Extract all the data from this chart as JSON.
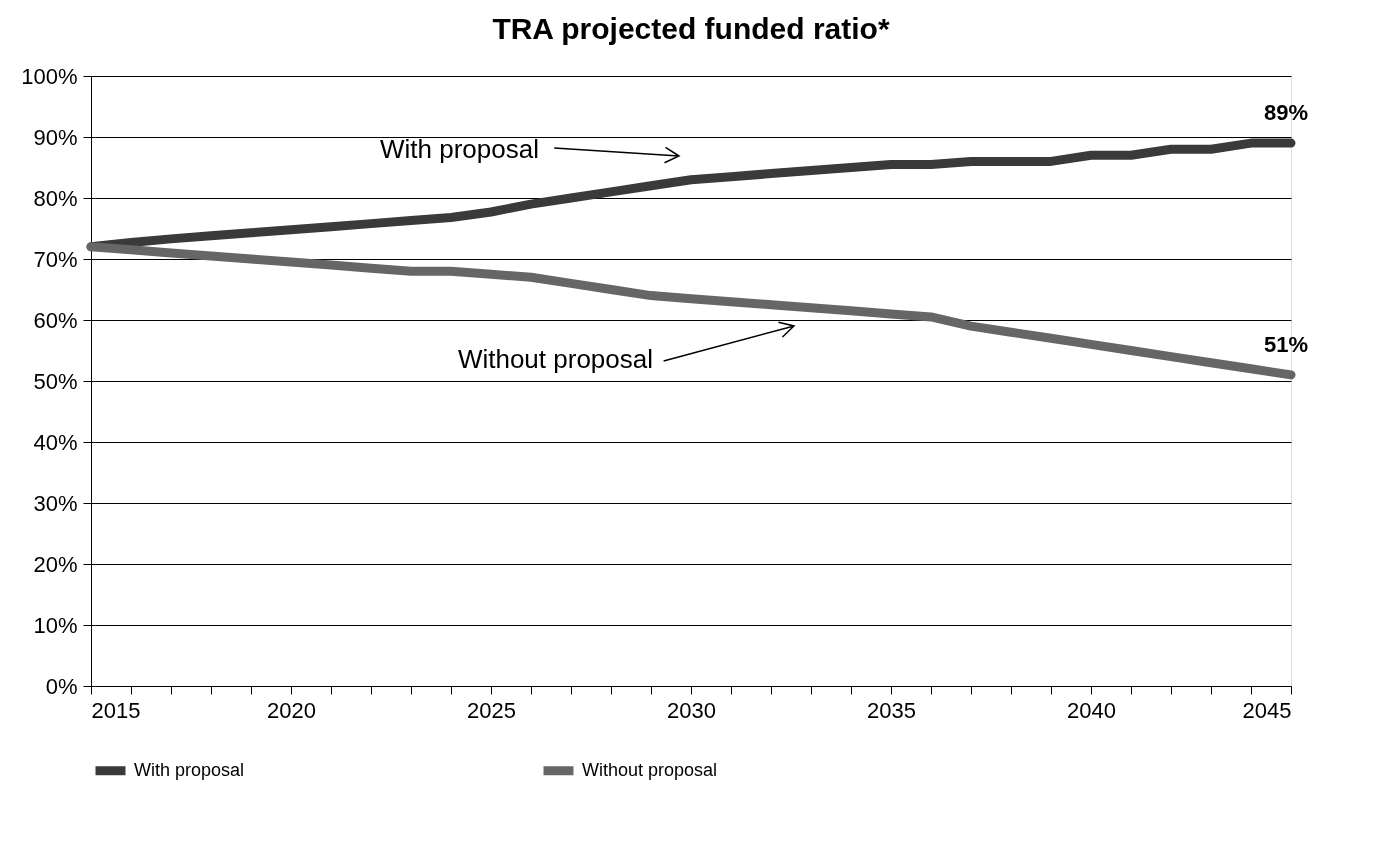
{
  "chart_data": {
    "type": "line",
    "title": "TRA projected funded ratio*",
    "x": [
      2015,
      2016,
      2017,
      2018,
      2019,
      2020,
      2021,
      2022,
      2023,
      2024,
      2025,
      2026,
      2027,
      2028,
      2029,
      2030,
      2031,
      2032,
      2033,
      2034,
      2035,
      2036,
      2037,
      2038,
      2039,
      2040,
      2041,
      2042,
      2043,
      2044,
      2045
    ],
    "series": [
      {
        "name": "With proposal",
        "color": "#3a3a3a",
        "values": [
          72,
          72.7,
          73.3,
          73.8,
          74.3,
          74.8,
          75.3,
          75.8,
          76.3,
          76.8,
          77.7,
          79,
          80,
          81,
          82,
          83,
          83.5,
          84,
          84.5,
          85,
          85.5,
          85.5,
          86,
          86,
          86,
          87,
          87,
          88,
          88,
          89,
          89
        ],
        "value_labels": [
          null,
          null,
          null,
          null,
          null,
          null,
          null,
          null,
          null,
          null,
          null,
          null,
          null,
          null,
          null,
          null,
          null,
          null,
          null,
          null,
          null,
          null,
          null,
          null,
          null,
          null,
          null,
          null,
          null,
          null,
          "89%"
        ]
      },
      {
        "name": "Without proposal",
        "color": "#666666",
        "values": [
          72,
          71.5,
          71,
          70.5,
          70,
          69.5,
          69,
          68.5,
          68,
          68,
          67.5,
          67,
          66,
          65,
          64,
          63.5,
          63,
          62.5,
          62,
          61.5,
          61,
          60.5,
          59,
          58,
          57,
          56,
          55,
          54,
          53,
          52,
          51
        ],
        "value_labels": [
          null,
          null,
          null,
          null,
          null,
          null,
          null,
          null,
          null,
          null,
          null,
          null,
          null,
          null,
          null,
          null,
          null,
          null,
          null,
          null,
          null,
          null,
          null,
          null,
          null,
          null,
          null,
          null,
          null,
          null,
          "51%"
        ]
      }
    ],
    "annotations": [
      "With proposal",
      "Without proposal"
    ],
    "xlim": [
      2015,
      2045
    ],
    "xticks": [
      2015,
      {
        "value": 2016,
        "label": null
      },
      {
        "value": 2017,
        "label": null
      },
      {
        "value": 2018,
        "label": null
      },
      {
        "value": 2019,
        "label": null
      },
      2020,
      {
        "value": 2021,
        "label": null
      },
      {
        "value": 2022,
        "label": null
      },
      {
        "value": 2023,
        "label": null
      },
      {
        "value": 2024,
        "label": null
      },
      2025,
      {
        "value": 2026,
        "label": null
      },
      {
        "value": 2027,
        "label": null
      },
      {
        "value": 2028,
        "label": null
      },
      {
        "value": 2029,
        "label": null
      },
      2030,
      {
        "value": 2031,
        "label": null
      },
      {
        "value": 2032,
        "label": null
      },
      {
        "value": 2033,
        "label": null
      },
      {
        "value": 2034,
        "label": null
      },
      2035,
      {
        "value": 2036,
        "label": null
      },
      {
        "value": 2037,
        "label": null
      },
      {
        "value": 2038,
        "label": null
      },
      {
        "value": 2039,
        "label": null
      },
      2040,
      {
        "value": 2041,
        "label": null
      },
      {
        "value": 2042,
        "label": null
      },
      {
        "value": 2043,
        "label": null
      },
      {
        "value": 2044,
        "label": null
      },
      2045
    ],
    "ylim": [
      0,
      100
    ],
    "yticks": [
      {
        "value": 0,
        "label": "0%"
      },
      {
        "value": 10,
        "label": "10%"
      },
      {
        "value": 20,
        "label": "20%"
      },
      {
        "value": 30,
        "label": "30%"
      },
      {
        "value": 40,
        "label": "40%"
      },
      {
        "value": 50,
        "label": "50%"
      },
      {
        "value": 60,
        "label": "60%"
      },
      {
        "value": 70,
        "label": "70%"
      },
      {
        "value": 80,
        "label": "80%"
      },
      {
        "value": 90,
        "label": "90%"
      },
      {
        "value": 100,
        "label": "100%"
      }
    ],
    "grid": "y",
    "legend": "bottom",
    "marker": "none",
    "line_style": "solid"
  }
}
